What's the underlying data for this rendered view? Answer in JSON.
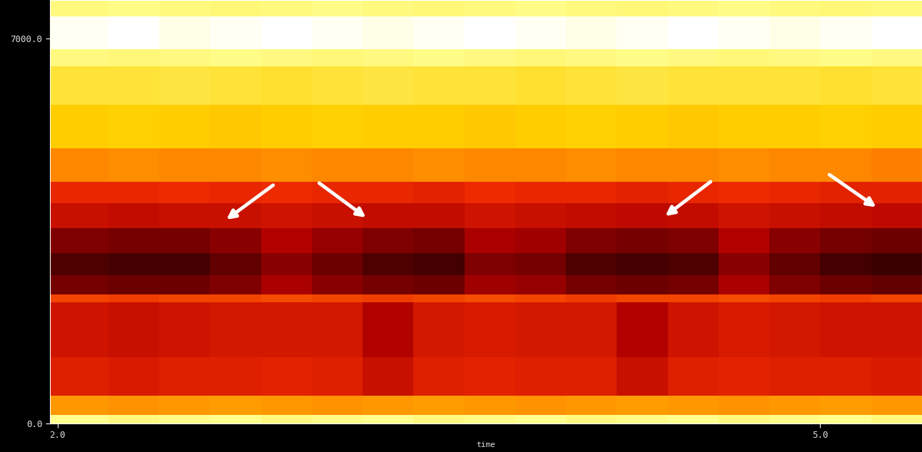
{
  "chart_data": {
    "type": "heatmap",
    "xlabel": "time",
    "xlim": [
      1.97,
      5.4
    ],
    "ylim": [
      0,
      7700
    ],
    "xticks": [
      {
        "value": 2.0,
        "label": "2.0"
      },
      {
        "value": 5.0,
        "label": "5.0"
      }
    ],
    "yticks": [
      {
        "value": 0,
        "label": "0.0"
      },
      {
        "value": 7000,
        "label": "7000.0"
      }
    ],
    "x_edges": [
      1.97,
      2.2,
      2.4,
      2.6,
      2.8,
      3.0,
      3.2,
      3.4,
      3.6,
      3.8,
      4.0,
      4.2,
      4.4,
      4.6,
      4.8,
      5.0,
      5.2,
      5.4
    ],
    "y_edges": [
      0,
      150,
      500,
      1200,
      2200,
      2350,
      2700,
      3100,
      3550,
      4000,
      4400,
      5000,
      5800,
      6500,
      6800,
      7400,
      7700
    ],
    "values": [
      [
        28,
        30,
        29,
        28,
        30,
        29,
        28,
        30,
        29,
        28,
        30,
        29,
        28,
        30,
        29,
        28,
        30
      ],
      [
        55,
        56,
        55,
        54,
        55,
        56,
        55,
        54,
        55,
        56,
        55,
        54,
        55,
        56,
        55,
        54,
        55
      ],
      [
        72,
        73,
        72,
        72,
        71,
        72,
        76,
        72,
        71,
        72,
        72,
        76,
        72,
        71,
        72,
        72,
        73
      ],
      [
        75,
        76,
        75,
        74,
        74,
        74,
        80,
        74,
        73,
        74,
        74,
        80,
        75,
        73,
        74,
        75,
        75
      ],
      [
        66,
        67,
        66,
        66,
        65,
        66,
        67,
        66,
        65,
        66,
        67,
        66,
        66,
        65,
        66,
        67,
        66
      ],
      [
        86,
        87,
        87,
        85,
        81,
        84,
        86,
        87,
        82,
        83,
        86,
        87,
        86,
        81,
        85,
        87,
        88
      ],
      [
        90,
        91,
        91,
        88,
        84,
        87,
        90,
        91,
        85,
        86,
        90,
        91,
        90,
        84,
        88,
        91,
        92
      ],
      [
        85,
        86,
        86,
        84,
        80,
        83,
        85,
        86,
        81,
        82,
        85,
        86,
        85,
        80,
        84,
        86,
        87
      ],
      [
        76,
        77,
        76,
        76,
        75,
        76,
        77,
        77,
        75,
        76,
        77,
        78,
        77,
        75,
        76,
        77,
        78
      ],
      [
        70,
        70,
        69,
        70,
        69,
        70,
        70,
        71,
        69,
        70,
        70,
        71,
        70,
        69,
        70,
        71,
        71
      ],
      [
        58,
        57,
        58,
        58,
        57,
        58,
        58,
        57,
        58,
        58,
        57,
        58,
        58,
        57,
        58,
        58,
        59
      ],
      [
        45,
        44,
        45,
        46,
        45,
        44,
        45,
        45,
        46,
        45,
        44,
        45,
        46,
        45,
        45,
        44,
        45
      ],
      [
        38,
        38,
        37,
        38,
        39,
        38,
        37,
        38,
        38,
        39,
        38,
        37,
        38,
        38,
        38,
        39,
        38
      ],
      [
        30,
        31,
        30,
        29,
        30,
        31,
        30,
        29,
        30,
        31,
        30,
        29,
        30,
        31,
        30,
        29,
        30
      ],
      [
        12,
        10,
        14,
        12,
        10,
        12,
        14,
        12,
        10,
        12,
        14,
        12,
        10,
        12,
        14,
        12,
        10
      ],
      [
        30,
        29,
        30,
        31,
        30,
        29,
        30,
        31,
        30,
        29,
        30,
        31,
        30,
        29,
        30,
        31,
        30
      ]
    ]
  }
}
